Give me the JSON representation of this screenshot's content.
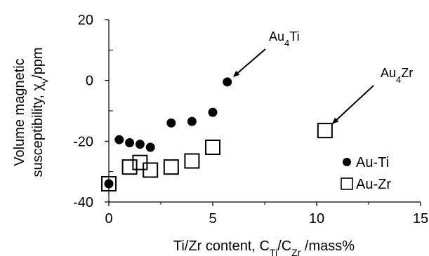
{
  "chart_data": {
    "type": "scatter",
    "title": "",
    "xlabel": "Ti/Zr content, C_Ti/C_Zr /mass%",
    "ylabel": "Volume magnetic susceptibility, χ_v/ppm",
    "ylabel_lines": [
      "Volume magnetic",
      "susceptibility, χ_v/ppm"
    ],
    "xlim": [
      0,
      15
    ],
    "ylim": [
      -40,
      20
    ],
    "x_ticks": [
      0,
      5,
      10,
      15
    ],
    "y_ticks": [
      -40,
      -20,
      0,
      20
    ],
    "grid": false,
    "legend_position": "bottom-right",
    "series": [
      {
        "name": "Au-Ti",
        "marker": "filled-circle",
        "color": "#000000",
        "points": [
          {
            "x": 0.0,
            "y": -34
          },
          {
            "x": 0.5,
            "y": -19.5
          },
          {
            "x": 1.0,
            "y": -20.5
          },
          {
            "x": 1.5,
            "y": -21
          },
          {
            "x": 2.0,
            "y": -22
          },
          {
            "x": 3.0,
            "y": -14
          },
          {
            "x": 4.0,
            "y": -13.5
          },
          {
            "x": 5.0,
            "y": -10.5
          },
          {
            "x": 5.7,
            "y": -0.5
          }
        ]
      },
      {
        "name": "Au-Zr",
        "marker": "open-square",
        "color": "#000000",
        "points": [
          {
            "x": 0.0,
            "y": -34
          },
          {
            "x": 1.0,
            "y": -28.5
          },
          {
            "x": 1.5,
            "y": -27
          },
          {
            "x": 2.0,
            "y": -29.5
          },
          {
            "x": 3.0,
            "y": -28.5
          },
          {
            "x": 4.0,
            "y": -26.5
          },
          {
            "x": 5.0,
            "y": -22
          },
          {
            "x": 10.4,
            "y": -16.5
          }
        ]
      }
    ],
    "annotations": [
      {
        "text": "Au4Ti",
        "base": "Au",
        "sub": "4",
        "rest": "Ti",
        "target": {
          "x": 5.7,
          "y": -0.5
        }
      },
      {
        "text": "Au4Zr",
        "base": "Au",
        "sub": "4",
        "rest": "Zr",
        "target": {
          "x": 10.4,
          "y": -16.5
        }
      }
    ]
  }
}
